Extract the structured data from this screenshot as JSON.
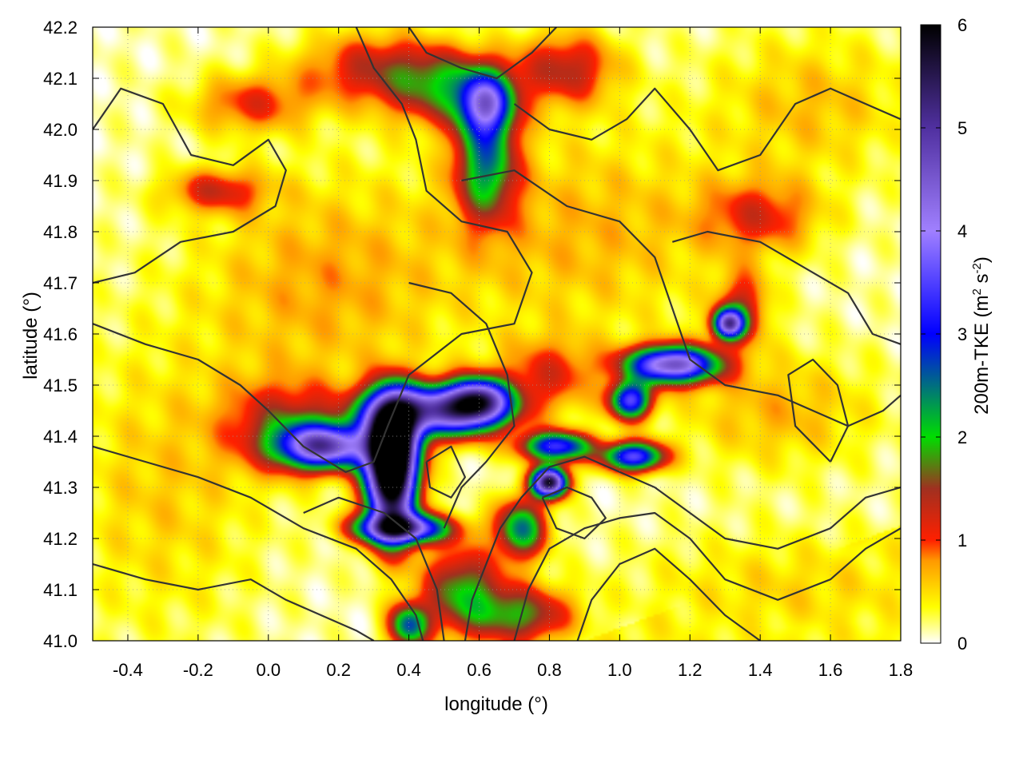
{
  "chart_data": {
    "type": "heatmap",
    "xlabel": "longitude (°)",
    "ylabel": "latitude (°)",
    "colorbar_label": {
      "main": "200m-TKE (m",
      "sup1": "2",
      "mid": " s",
      "sup2": "-2",
      "end": ")"
    },
    "xlim": [
      -0.5,
      1.8
    ],
    "ylim": [
      41.0,
      42.2
    ],
    "clim": [
      0,
      6
    ],
    "x_ticks": [
      {
        "v": -0.4,
        "label": "-0.4"
      },
      {
        "v": -0.2,
        "label": "-0.2"
      },
      {
        "v": 0.0,
        "label": "0.0"
      },
      {
        "v": 0.2,
        "label": "0.2"
      },
      {
        "v": 0.4,
        "label": "0.4"
      },
      {
        "v": 0.6,
        "label": "0.6"
      },
      {
        "v": 0.8,
        "label": "0.8"
      },
      {
        "v": 1.0,
        "label": "1.0"
      },
      {
        "v": 1.2,
        "label": "1.2"
      },
      {
        "v": 1.4,
        "label": "1.4"
      },
      {
        "v": 1.6,
        "label": "1.6"
      },
      {
        "v": 1.8,
        "label": "1.8"
      }
    ],
    "y_ticks": [
      {
        "v": 41.0,
        "label": "41.0"
      },
      {
        "v": 41.1,
        "label": "41.1"
      },
      {
        "v": 41.2,
        "label": "41.2"
      },
      {
        "v": 41.3,
        "label": "41.3"
      },
      {
        "v": 41.4,
        "label": "41.4"
      },
      {
        "v": 41.5,
        "label": "41.5"
      },
      {
        "v": 41.6,
        "label": "41.6"
      },
      {
        "v": 41.7,
        "label": "41.7"
      },
      {
        "v": 41.8,
        "label": "41.8"
      },
      {
        "v": 41.9,
        "label": "41.9"
      },
      {
        "v": 42.0,
        "label": "42.0"
      },
      {
        "v": 42.1,
        "label": "42.1"
      },
      {
        "v": 42.2,
        "label": "42.2"
      }
    ],
    "c_ticks": [
      {
        "v": 0,
        "label": "0"
      },
      {
        "v": 1,
        "label": "1"
      },
      {
        "v": 2,
        "label": "2"
      },
      {
        "v": 3,
        "label": "3"
      },
      {
        "v": 4,
        "label": "4"
      },
      {
        "v": 5,
        "label": "5"
      },
      {
        "v": 6,
        "label": "6"
      }
    ],
    "grid": true,
    "colormap": [
      {
        "v": 0.0,
        "color": "#ffffff"
      },
      {
        "v": 0.35,
        "color": "#ffff00"
      },
      {
        "v": 0.8,
        "color": "#ff9900"
      },
      {
        "v": 1.0,
        "color": "#ff2000"
      },
      {
        "v": 1.5,
        "color": "#a03020"
      },
      {
        "v": 2.0,
        "color": "#00dd00"
      },
      {
        "v": 3.0,
        "color": "#0000ff"
      },
      {
        "v": 4.0,
        "color": "#a080ff"
      },
      {
        "v": 5.0,
        "color": "#5030a0"
      },
      {
        "v": 6.0,
        "color": "#000000"
      }
    ],
    "tke_blobs": [
      {
        "x": 0.35,
        "y": 41.32,
        "sx": 0.05,
        "sy": 0.08,
        "a": 6.0
      },
      {
        "x": 0.16,
        "y": 41.38,
        "sx": 0.09,
        "sy": 0.03,
        "a": 4.2
      },
      {
        "x": 0.48,
        "y": 41.45,
        "sx": 0.13,
        "sy": 0.035,
        "a": 4.3
      },
      {
        "x": 0.6,
        "y": 41.47,
        "sx": 0.06,
        "sy": 0.03,
        "a": 3.6
      },
      {
        "x": 0.35,
        "y": 41.4,
        "sx": 0.05,
        "sy": 0.06,
        "a": 3.8
      },
      {
        "x": 0.38,
        "y": 41.22,
        "sx": 0.09,
        "sy": 0.02,
        "a": 4.1
      },
      {
        "x": 0.8,
        "y": 41.31,
        "sx": 0.035,
        "sy": 0.02,
        "a": 5.6
      },
      {
        "x": 0.82,
        "y": 41.38,
        "sx": 0.07,
        "sy": 0.02,
        "a": 3.2
      },
      {
        "x": 1.04,
        "y": 41.36,
        "sx": 0.06,
        "sy": 0.02,
        "a": 3.4
      },
      {
        "x": 1.15,
        "y": 41.54,
        "sx": 0.09,
        "sy": 0.025,
        "a": 4.4
      },
      {
        "x": 1.03,
        "y": 41.47,
        "sx": 0.04,
        "sy": 0.025,
        "a": 3.3
      },
      {
        "x": 1.31,
        "y": 41.62,
        "sx": 0.03,
        "sy": 0.02,
        "a": 4.2
      },
      {
        "x": 0.62,
        "y": 41.94,
        "sx": 0.06,
        "sy": 0.08,
        "a": 2.1
      },
      {
        "x": 0.62,
        "y": 42.05,
        "sx": 0.05,
        "sy": 0.04,
        "a": 2.6
      },
      {
        "x": 0.52,
        "y": 42.08,
        "sx": 0.12,
        "sy": 0.05,
        "a": 1.5
      },
      {
        "x": 0.72,
        "y": 41.22,
        "sx": 0.05,
        "sy": 0.04,
        "a": 2.3
      },
      {
        "x": 0.55,
        "y": 41.1,
        "sx": 0.08,
        "sy": 0.06,
        "a": 1.7
      },
      {
        "x": 0.4,
        "y": 41.03,
        "sx": 0.04,
        "sy": 0.03,
        "a": 2.4
      },
      {
        "x": 0.72,
        "y": 41.05,
        "sx": 0.1,
        "sy": 0.04,
        "a": 1.6
      },
      {
        "x": 0.05,
        "y": 41.42,
        "sx": 0.12,
        "sy": 0.06,
        "a": 1.2
      },
      {
        "x": -0.15,
        "y": 41.88,
        "sx": 0.1,
        "sy": 0.03,
        "a": 1.0
      },
      {
        "x": -0.05,
        "y": 42.05,
        "sx": 0.12,
        "sy": 0.04,
        "a": 0.9
      },
      {
        "x": 0.3,
        "y": 42.12,
        "sx": 0.15,
        "sy": 0.05,
        "a": 1.1
      },
      {
        "x": 0.85,
        "y": 42.12,
        "sx": 0.1,
        "sy": 0.05,
        "a": 1.2
      },
      {
        "x": 1.4,
        "y": 41.83,
        "sx": 0.12,
        "sy": 0.05,
        "a": 0.9
      },
      {
        "x": 1.35,
        "y": 41.65,
        "sx": 0.05,
        "sy": 0.05,
        "a": 1.1
      },
      {
        "x": 0.8,
        "y": 41.52,
        "sx": 0.1,
        "sy": 0.05,
        "a": 0.9
      },
      {
        "x": 1.45,
        "y": 41.45,
        "sx": 0.2,
        "sy": 0.08,
        "a": 0.55
      },
      {
        "x": 0.15,
        "y": 41.7,
        "sx": 0.25,
        "sy": 0.15,
        "a": 0.6
      },
      {
        "x": 0.9,
        "y": 41.8,
        "sx": 0.3,
        "sy": 0.15,
        "a": 0.55
      },
      {
        "x": -0.3,
        "y": 41.3,
        "sx": 0.2,
        "sy": 0.2,
        "a": 0.45
      },
      {
        "x": 1.55,
        "y": 42.05,
        "sx": 0.2,
        "sy": 0.1,
        "a": 0.5
      },
      {
        "x": 1.5,
        "y": 41.1,
        "sx": 0.35,
        "sy": 0.08,
        "a": 0.4
      }
    ],
    "contours": [
      [
        [
          -0.5,
          42.0
        ],
        [
          -0.42,
          42.08
        ],
        [
          -0.3,
          42.05
        ],
        [
          -0.22,
          41.95
        ],
        [
          -0.1,
          41.93
        ],
        [
          0.0,
          41.98
        ],
        [
          0.05,
          41.92
        ],
        [
          0.02,
          41.85
        ],
        [
          -0.1,
          41.8
        ],
        [
          -0.25,
          41.78
        ],
        [
          -0.38,
          41.72
        ],
        [
          -0.5,
          41.7
        ]
      ],
      [
        [
          -0.5,
          41.62
        ],
        [
          -0.35,
          41.58
        ],
        [
          -0.2,
          41.55
        ],
        [
          -0.08,
          41.5
        ],
        [
          0.0,
          41.45
        ],
        [
          0.1,
          41.38
        ],
        [
          0.22,
          41.33
        ],
        [
          0.3,
          41.35
        ],
        [
          0.34,
          41.42
        ],
        [
          0.4,
          41.52
        ],
        [
          0.55,
          41.6
        ],
        [
          0.7,
          41.62
        ],
        [
          0.75,
          41.72
        ],
        [
          0.68,
          41.8
        ],
        [
          0.55,
          41.82
        ],
        [
          0.45,
          41.88
        ],
        [
          0.42,
          41.98
        ],
        [
          0.38,
          42.05
        ],
        [
          0.3,
          42.12
        ],
        [
          0.25,
          42.2
        ]
      ],
      [
        [
          0.1,
          41.25
        ],
        [
          0.2,
          41.28
        ],
        [
          0.33,
          41.25
        ],
        [
          0.42,
          41.2
        ],
        [
          0.48,
          41.1
        ],
        [
          0.5,
          41.0
        ]
      ],
      [
        [
          -0.5,
          41.38
        ],
        [
          -0.35,
          41.35
        ],
        [
          -0.2,
          41.32
        ],
        [
          -0.05,
          41.28
        ],
        [
          0.1,
          41.22
        ],
        [
          0.25,
          41.18
        ],
        [
          0.35,
          41.12
        ],
        [
          0.42,
          41.05
        ],
        [
          0.44,
          41.0
        ]
      ],
      [
        [
          0.56,
          41.0
        ],
        [
          0.58,
          41.08
        ],
        [
          0.62,
          41.15
        ],
        [
          0.66,
          41.22
        ],
        [
          0.72,
          41.28
        ],
        [
          0.8,
          41.34
        ],
        [
          0.9,
          41.36
        ],
        [
          1.0,
          41.33
        ],
        [
          1.1,
          41.3
        ],
        [
          1.2,
          41.25
        ],
        [
          1.3,
          41.2
        ],
        [
          1.45,
          41.18
        ],
        [
          1.6,
          41.22
        ],
        [
          1.7,
          41.28
        ],
        [
          1.8,
          41.3
        ]
      ],
      [
        [
          0.7,
          41.0
        ],
        [
          0.74,
          41.1
        ],
        [
          0.8,
          41.18
        ],
        [
          0.9,
          41.22
        ],
        [
          1.0,
          41.24
        ],
        [
          1.1,
          41.25
        ],
        [
          1.2,
          41.2
        ],
        [
          1.3,
          41.12
        ],
        [
          1.45,
          41.08
        ],
        [
          1.6,
          41.12
        ],
        [
          1.7,
          41.18
        ],
        [
          1.8,
          41.22
        ]
      ],
      [
        [
          0.88,
          41.0
        ],
        [
          0.92,
          41.08
        ],
        [
          1.0,
          41.15
        ],
        [
          1.1,
          41.18
        ],
        [
          1.2,
          41.12
        ],
        [
          1.3,
          41.05
        ],
        [
          1.4,
          41.0
        ]
      ],
      [
        [
          0.55,
          41.9
        ],
        [
          0.7,
          41.92
        ],
        [
          0.85,
          41.85
        ],
        [
          1.0,
          41.82
        ],
        [
          1.1,
          41.75
        ],
        [
          1.15,
          41.65
        ],
        [
          1.2,
          41.55
        ],
        [
          1.3,
          41.5
        ],
        [
          1.45,
          41.48
        ],
        [
          1.55,
          41.45
        ],
        [
          1.65,
          41.42
        ],
        [
          1.75,
          41.45
        ],
        [
          1.8,
          41.48
        ]
      ],
      [
        [
          0.7,
          42.05
        ],
        [
          0.8,
          42.0
        ],
        [
          0.92,
          41.98
        ],
        [
          1.02,
          42.02
        ],
        [
          1.1,
          42.08
        ],
        [
          1.2,
          42.0
        ],
        [
          1.28,
          41.92
        ],
        [
          1.4,
          41.95
        ],
        [
          1.5,
          42.05
        ],
        [
          1.6,
          42.08
        ],
        [
          1.7,
          42.05
        ],
        [
          1.8,
          42.02
        ]
      ],
      [
        [
          0.4,
          41.7
        ],
        [
          0.52,
          41.68
        ],
        [
          0.62,
          41.62
        ],
        [
          0.68,
          41.52
        ],
        [
          0.7,
          41.42
        ],
        [
          0.62,
          41.35
        ],
        [
          0.55,
          41.3
        ],
        [
          0.5,
          41.22
        ]
      ],
      [
        [
          -0.5,
          41.15
        ],
        [
          -0.35,
          41.12
        ],
        [
          -0.2,
          41.1
        ],
        [
          -0.05,
          41.12
        ],
        [
          0.05,
          41.08
        ],
        [
          0.15,
          41.05
        ],
        [
          0.25,
          41.02
        ],
        [
          0.3,
          41.0
        ]
      ],
      [
        [
          0.4,
          42.2
        ],
        [
          0.45,
          42.15
        ],
        [
          0.55,
          42.12
        ],
        [
          0.65,
          42.1
        ],
        [
          0.75,
          42.15
        ],
        [
          0.82,
          42.2
        ]
      ],
      [
        [
          1.15,
          41.78
        ],
        [
          1.25,
          41.8
        ],
        [
          1.4,
          41.78
        ],
        [
          1.55,
          41.72
        ],
        [
          1.65,
          41.68
        ],
        [
          1.72,
          41.6
        ],
        [
          1.8,
          41.58
        ]
      ],
      [
        [
          1.6,
          41.35
        ],
        [
          1.65,
          41.42
        ],
        [
          1.62,
          41.5
        ],
        [
          1.55,
          41.55
        ],
        [
          1.48,
          41.52
        ],
        [
          1.5,
          41.42
        ],
        [
          1.6,
          41.35
        ]
      ],
      [
        [
          0.78,
          41.28
        ],
        [
          0.85,
          41.3
        ],
        [
          0.92,
          41.28
        ],
        [
          0.96,
          41.24
        ],
        [
          0.9,
          41.2
        ],
        [
          0.82,
          41.22
        ],
        [
          0.78,
          41.28
        ]
      ],
      [
        [
          0.45,
          41.35
        ],
        [
          0.52,
          41.38
        ],
        [
          0.56,
          41.32
        ],
        [
          0.52,
          41.28
        ],
        [
          0.46,
          41.3
        ],
        [
          0.45,
          41.35
        ]
      ]
    ]
  }
}
